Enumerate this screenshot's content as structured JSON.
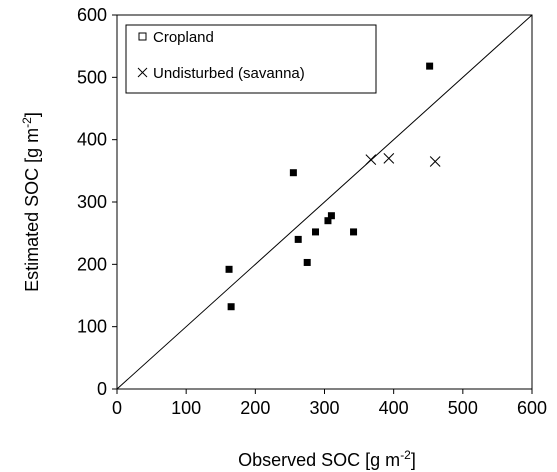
{
  "chart_data": {
    "type": "scatter",
    "title": "",
    "xlabel": "Observed SOC [g m",
    "xlabel_sup": "-2",
    "xlabel_end": "]",
    "ylabel": "Estimated SOC [g m",
    "ylabel_sup": "-2",
    "ylabel_end": "]",
    "xlim": [
      0,
      600
    ],
    "ylim": [
      0,
      600
    ],
    "xticks": [
      0,
      100,
      200,
      300,
      400,
      500,
      600
    ],
    "yticks": [
      0,
      100,
      200,
      300,
      400,
      500,
      600
    ],
    "grid": false,
    "legend_position": "top-left",
    "reference_line": "1:1",
    "series": [
      {
        "name": "Cropland",
        "marker": "filled-square",
        "color": "#000000",
        "points": [
          [
            162,
            192
          ],
          [
            165,
            132
          ],
          [
            255,
            347
          ],
          [
            262,
            240
          ],
          [
            275,
            203
          ],
          [
            287,
            252
          ],
          [
            305,
            270
          ],
          [
            310,
            278
          ],
          [
            342,
            252
          ],
          [
            452,
            518
          ]
        ]
      },
      {
        "name": "Undisturbed (savanna)",
        "marker": "cross",
        "color": "#000000",
        "points": [
          [
            367,
            368
          ],
          [
            393,
            370
          ],
          [
            460,
            365
          ]
        ]
      }
    ]
  }
}
